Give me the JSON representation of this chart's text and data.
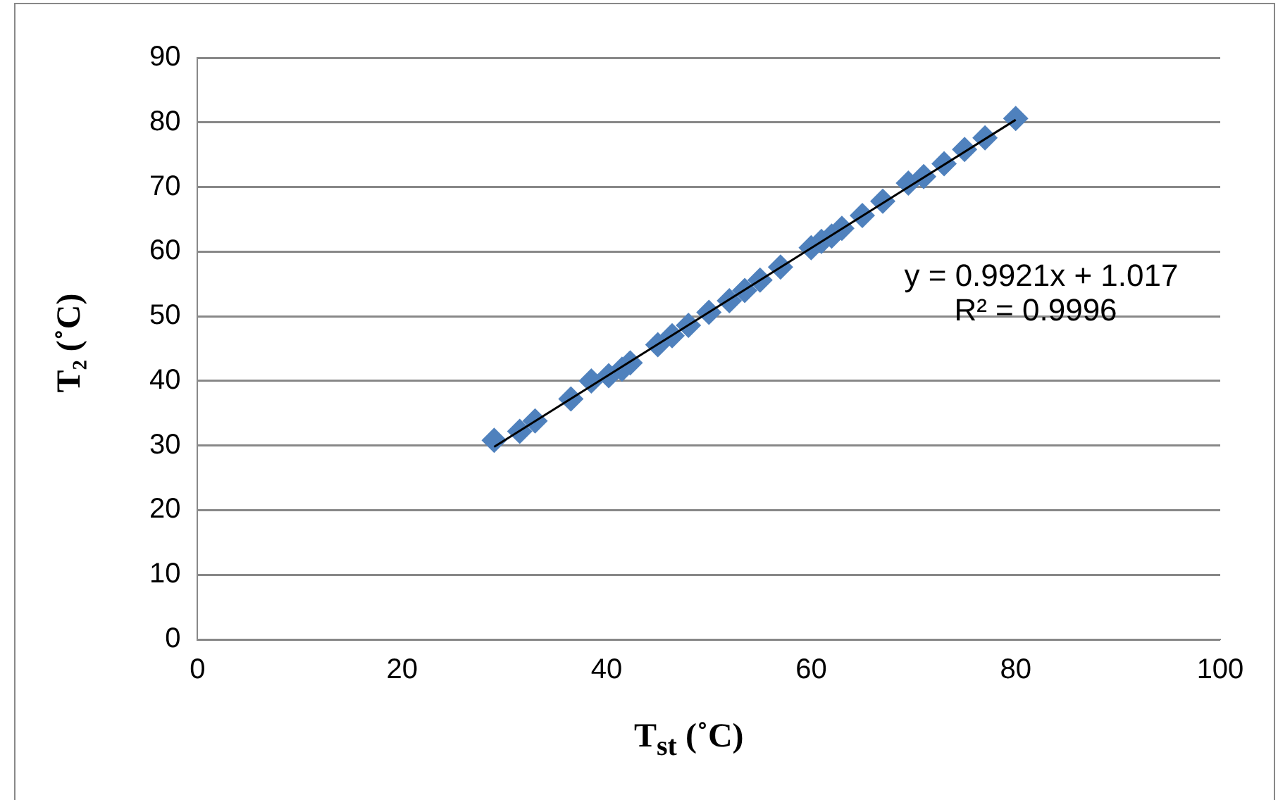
{
  "chart_data": {
    "type": "scatter",
    "xlabel": "T$_{st}$ (˚C)",
    "ylabel": "T₂ (˚C)",
    "xlim": [
      0,
      100
    ],
    "xticks": [
      0,
      20,
      40,
      60,
      80,
      100
    ],
    "ylim": [
      0,
      90
    ],
    "yticks": [
      0,
      10,
      20,
      30,
      40,
      50,
      60,
      70,
      80,
      90
    ],
    "grid": "y",
    "legend": false,
    "marker": "diamond",
    "series": [
      {
        "color": "#4f81bd",
        "x": [
          29,
          31.5,
          33,
          36.5,
          38.5,
          40.2,
          41.5,
          42.3,
          44.4,
          45,
          46.4,
          47.6,
          48,
          50,
          52,
          53.5,
          55,
          57,
          60,
          61,
          62,
          63,
          65,
          67,
          69.5,
          71,
          73,
          75,
          77,
          80
        ],
        "values": [
          30.8,
          32.2,
          33.8,
          37.2,
          40,
          40.8,
          41.8,
          42.8,
          null,
          45.6,
          47,
          null,
          48.6,
          50.6,
          52.4,
          54,
          55.6,
          57.6,
          60.6,
          61.6,
          62.4,
          63.6,
          65.6,
          67.8,
          70.6,
          71.6,
          73.6,
          75.8,
          77.6,
          80.6
        ]
      },
      {
        "type": "line",
        "color": "#000000",
        "marker": "none",
        "x": [
          29,
          80
        ],
        "values": [
          29.8,
          80.4
        ]
      }
    ],
    "annotations": [
      "y = 0.9921x + 1.017",
      "R² = 0.9996"
    ]
  }
}
